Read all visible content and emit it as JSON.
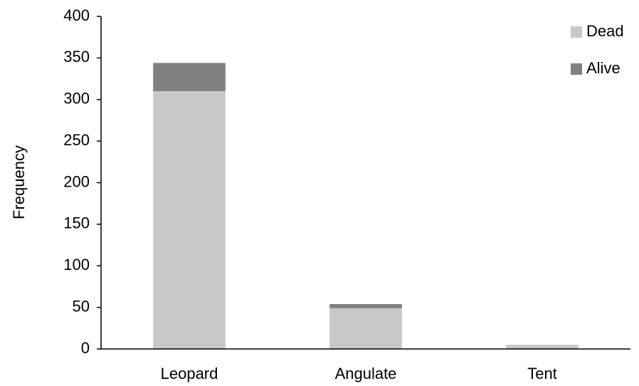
{
  "chart_data": {
    "type": "bar",
    "stacked": true,
    "y_label": "Frequency",
    "categories": [
      "Leopard",
      "Angulate",
      "Tent"
    ],
    "series": [
      {
        "name": "Dead",
        "color": "#c8c8c8",
        "values": [
          310,
          49,
          5
        ]
      },
      {
        "name": "Alive",
        "color": "#808080",
        "values": [
          34,
          5,
          0
        ]
      }
    ],
    "ylim": [
      0,
      400
    ],
    "yticks": [
      0,
      50,
      100,
      150,
      200,
      250,
      300,
      350,
      400
    ],
    "grid": false,
    "legend": "top-right"
  }
}
